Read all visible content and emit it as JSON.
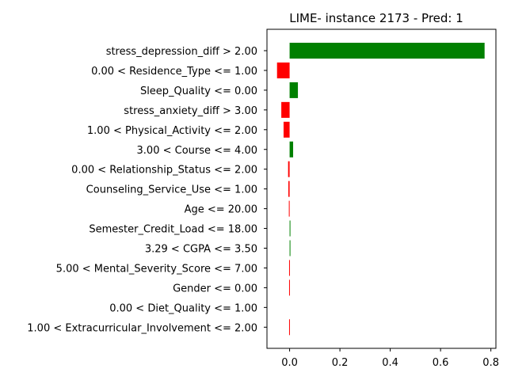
{
  "chart_data": {
    "type": "bar",
    "orientation": "horizontal",
    "title": "LIME- instance 2173 - Pred: 1",
    "xlabel": "",
    "ylabel": "",
    "xlim": [
      -0.09,
      0.82
    ],
    "xticks": [
      0.0,
      0.2,
      0.4,
      0.6,
      0.8
    ],
    "xtick_labels": [
      "0.0",
      "0.2",
      "0.4",
      "0.6",
      "0.8"
    ],
    "grid": false,
    "positive_color": "#008000",
    "negative_color": "#ff0000",
    "categories": [
      "stress_depression_diff > 2.00",
      "0.00 < Residence_Type <= 1.00",
      "Sleep_Quality <= 0.00",
      "stress_anxiety_diff > 3.00",
      "1.00 < Physical_Activity <= 2.00",
      "3.00 < Course <= 4.00",
      "0.00 < Relationship_Status <= 2.00",
      "Counseling_Service_Use <= 1.00",
      "Age <= 20.00",
      "Semester_Credit_Load <= 18.00",
      "3.29 < CGPA <= 3.50",
      "5.00 < Mental_Severity_Score <= 7.00",
      "Gender <= 0.00",
      "0.00 < Diet_Quality <= 1.00",
      "1.00 < Extracurricular_Involvement <= 2.00"
    ],
    "values": [
      0.775,
      -0.05,
      0.033,
      -0.033,
      -0.024,
      0.014,
      -0.006,
      -0.005,
      -0.003,
      0.002,
      0.002,
      -0.002,
      -0.002,
      0.0,
      -0.002
    ]
  }
}
